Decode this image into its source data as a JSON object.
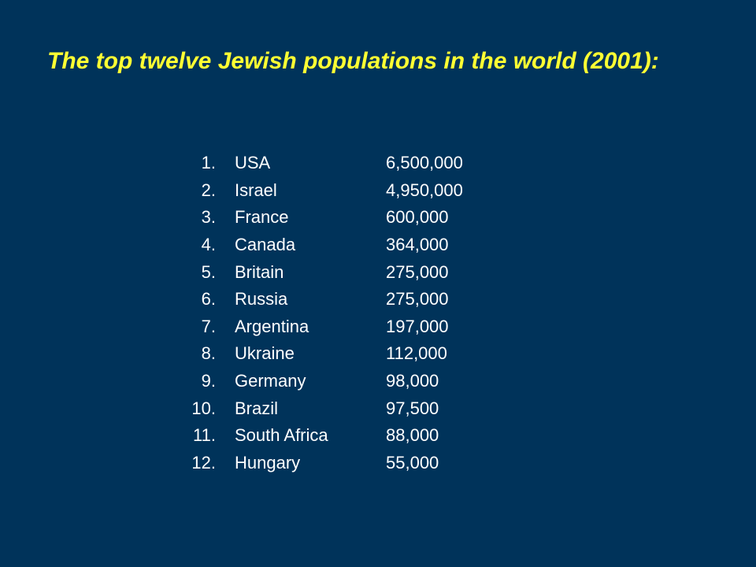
{
  "title": "The top twelve Jewish populations in the world (2001):",
  "rows": [
    {
      "rank": "1.",
      "country": "USA",
      "population": "6,500,000"
    },
    {
      "rank": "2.",
      "country": "Israel",
      "population": "4,950,000"
    },
    {
      "rank": "3.",
      "country": "France",
      "population": "600,000"
    },
    {
      "rank": "4.",
      "country": "Canada",
      "population": "364,000"
    },
    {
      "rank": "5.",
      "country": "Britain",
      "population": "275,000"
    },
    {
      "rank": "6.",
      "country": "Russia",
      "population": "275,000"
    },
    {
      "rank": "7.",
      "country": "Argentina",
      "population": "197,000"
    },
    {
      "rank": "8.",
      "country": "Ukraine",
      "population": "112,000"
    },
    {
      "rank": "9.",
      "country": "Germany",
      "population": "98,000"
    },
    {
      "rank": "10.",
      "country": "Brazil",
      "population": "97,500"
    },
    {
      "rank": "11.",
      "country": "South Africa",
      "population": "88,000"
    },
    {
      "rank": "12.",
      "country": "Hungary",
      "population": "55,000"
    }
  ],
  "colors": {
    "background": "#00335a",
    "title": "#ffff33",
    "text": "#ffffff"
  }
}
